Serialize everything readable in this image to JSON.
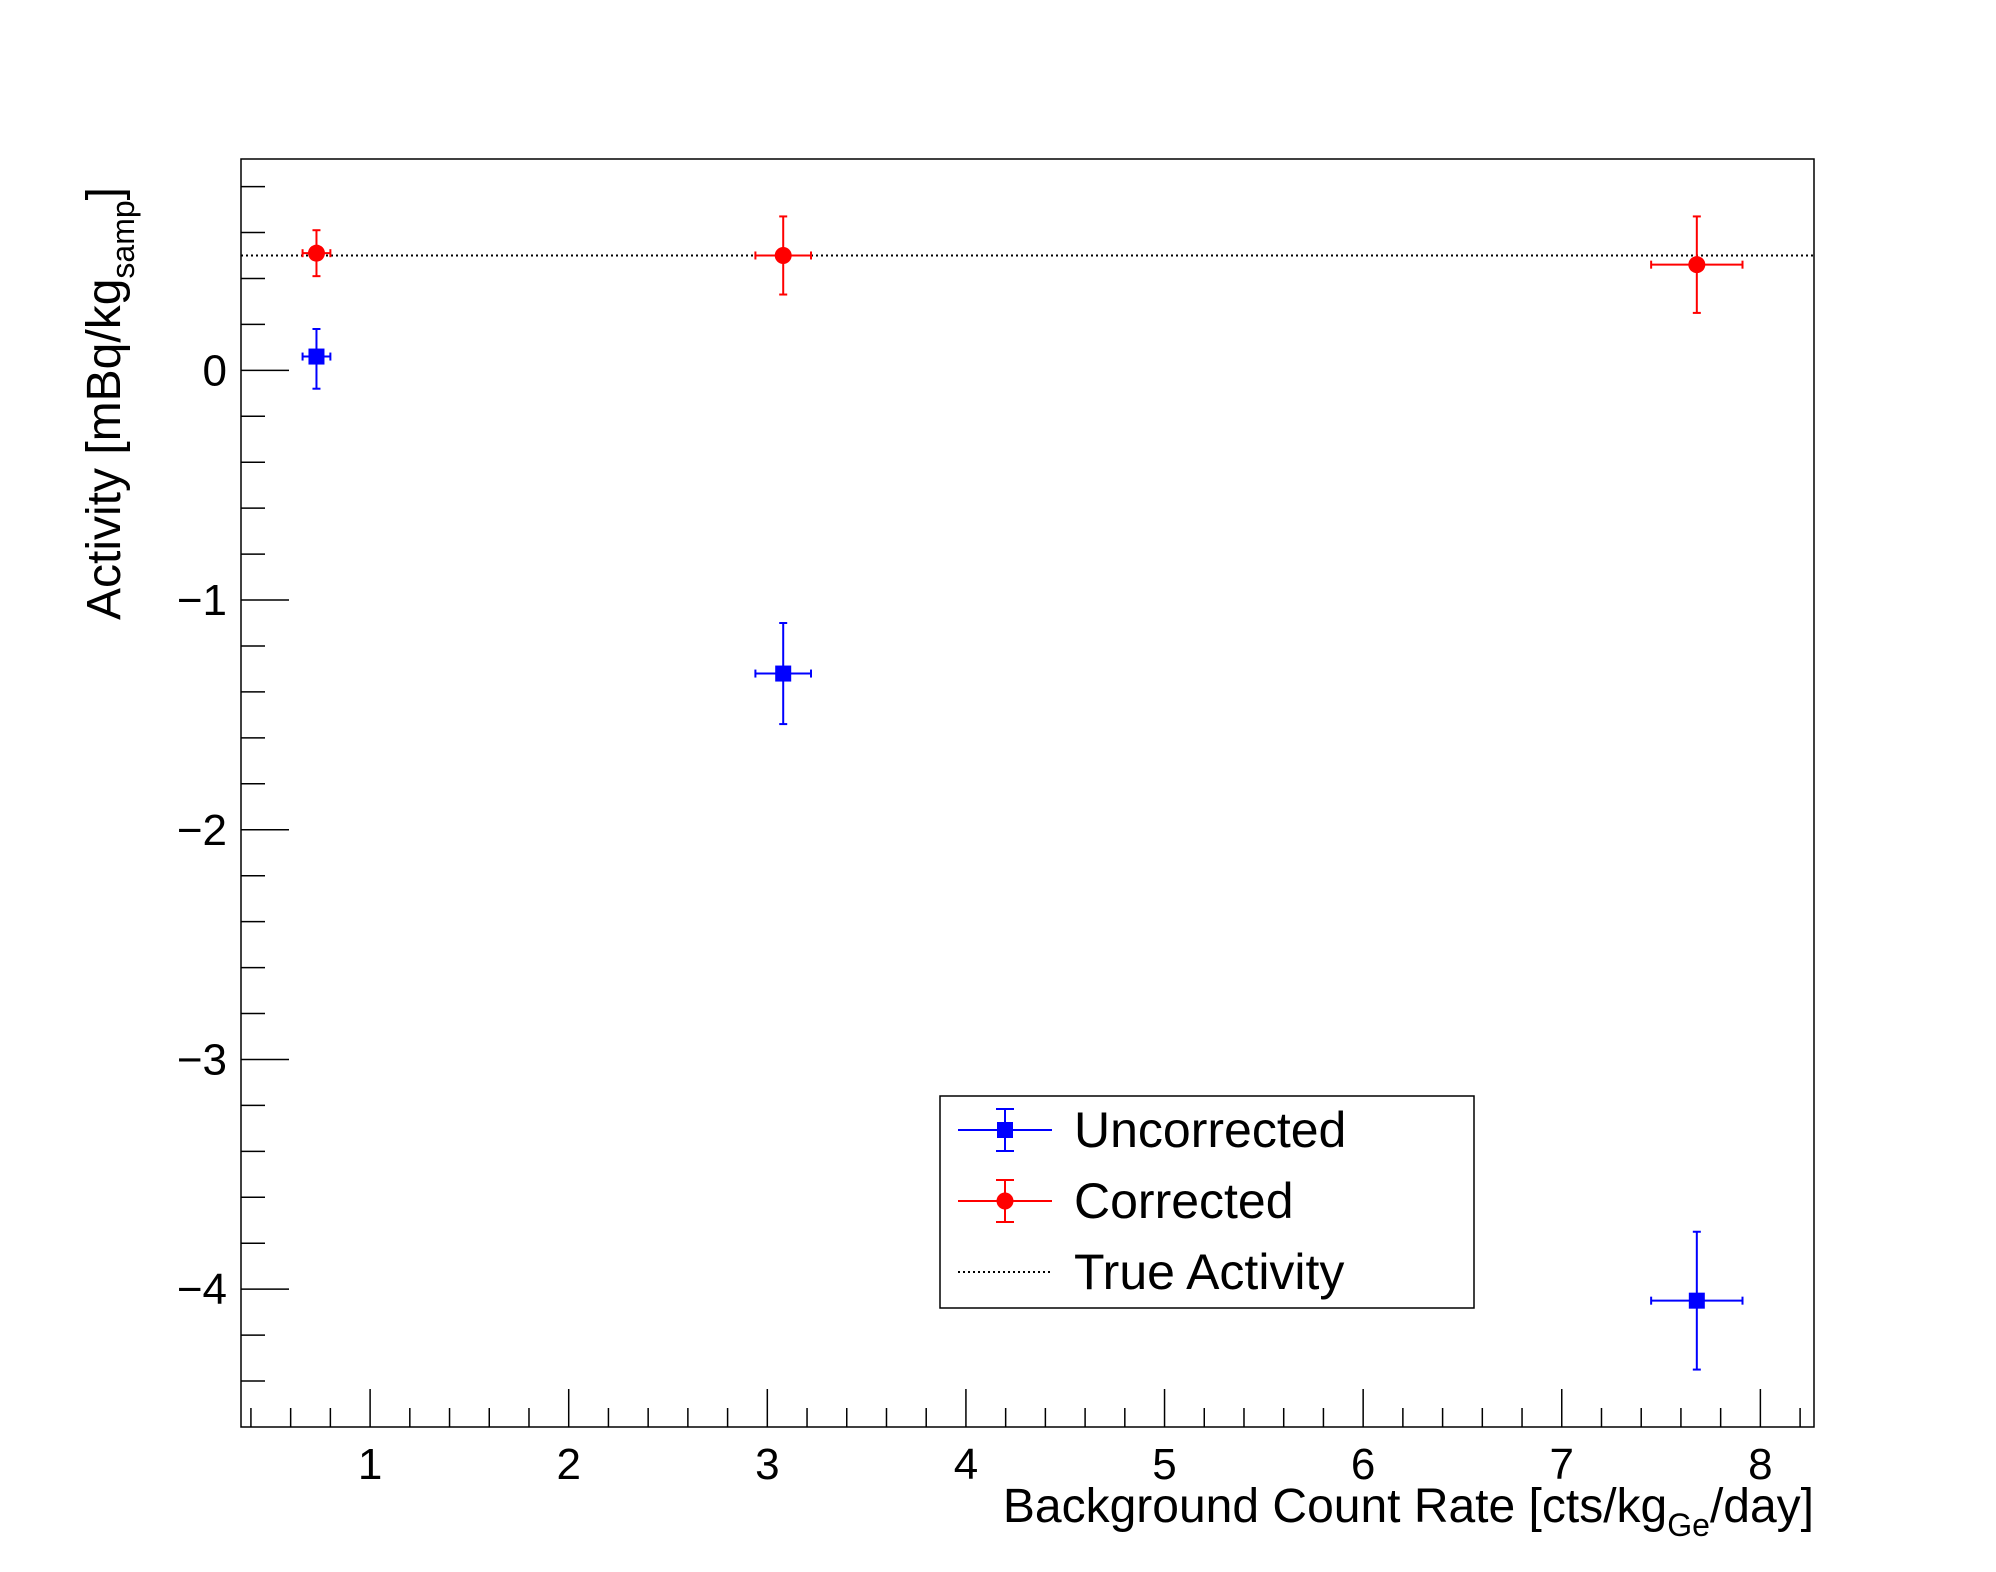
{
  "chart_data": {
    "type": "scatter",
    "xlabel": {
      "main": "Background Count Rate [cts/kg",
      "sub": "Ge",
      "tail": "/day]"
    },
    "ylabel": {
      "main": "Activity [mBq/kg",
      "sub": "samp",
      "tail": "]"
    },
    "xlim": [
      0.35,
      8.27
    ],
    "ylim": [
      -4.6,
      0.92
    ],
    "x_ticks": [
      1,
      2,
      3,
      4,
      5,
      6,
      7,
      8
    ],
    "y_ticks": [
      0,
      -1,
      -2,
      -3,
      -4
    ],
    "x_tick_labels": [
      "1",
      "2",
      "3",
      "4",
      "5",
      "6",
      "7",
      "8"
    ],
    "y_tick_labels": [
      "0",
      "−1",
      "−2",
      "−3",
      "−4"
    ],
    "grid": false,
    "legend_position": "bottom-right",
    "series": [
      {
        "name": "Uncorrected",
        "color": "#0000ff",
        "marker": "square",
        "points": [
          {
            "x": 0.73,
            "y": 0.06,
            "xerr": 0.07,
            "yerr_low": 0.14,
            "yerr_high": 0.12
          },
          {
            "x": 3.08,
            "y": -1.32,
            "xerr": 0.14,
            "yerr_low": 0.22,
            "yerr_high": 0.22
          },
          {
            "x": 7.68,
            "y": -4.05,
            "xerr": 0.23,
            "yerr_low": 0.3,
            "yerr_high": 0.3
          }
        ]
      },
      {
        "name": "Corrected",
        "color": "#ff0000",
        "marker": "circle",
        "points": [
          {
            "x": 0.73,
            "y": 0.51,
            "xerr": 0.07,
            "yerr_low": 0.1,
            "yerr_high": 0.1
          },
          {
            "x": 3.08,
            "y": 0.5,
            "xerr": 0.14,
            "yerr_low": 0.17,
            "yerr_high": 0.17
          },
          {
            "x": 7.68,
            "y": 0.46,
            "xerr": 0.23,
            "yerr_low": 0.21,
            "yerr_high": 0.21
          }
        ]
      }
    ],
    "reference_line": {
      "name": "True Activity",
      "y": 0.5,
      "style": "dotted",
      "color": "#000000"
    }
  }
}
